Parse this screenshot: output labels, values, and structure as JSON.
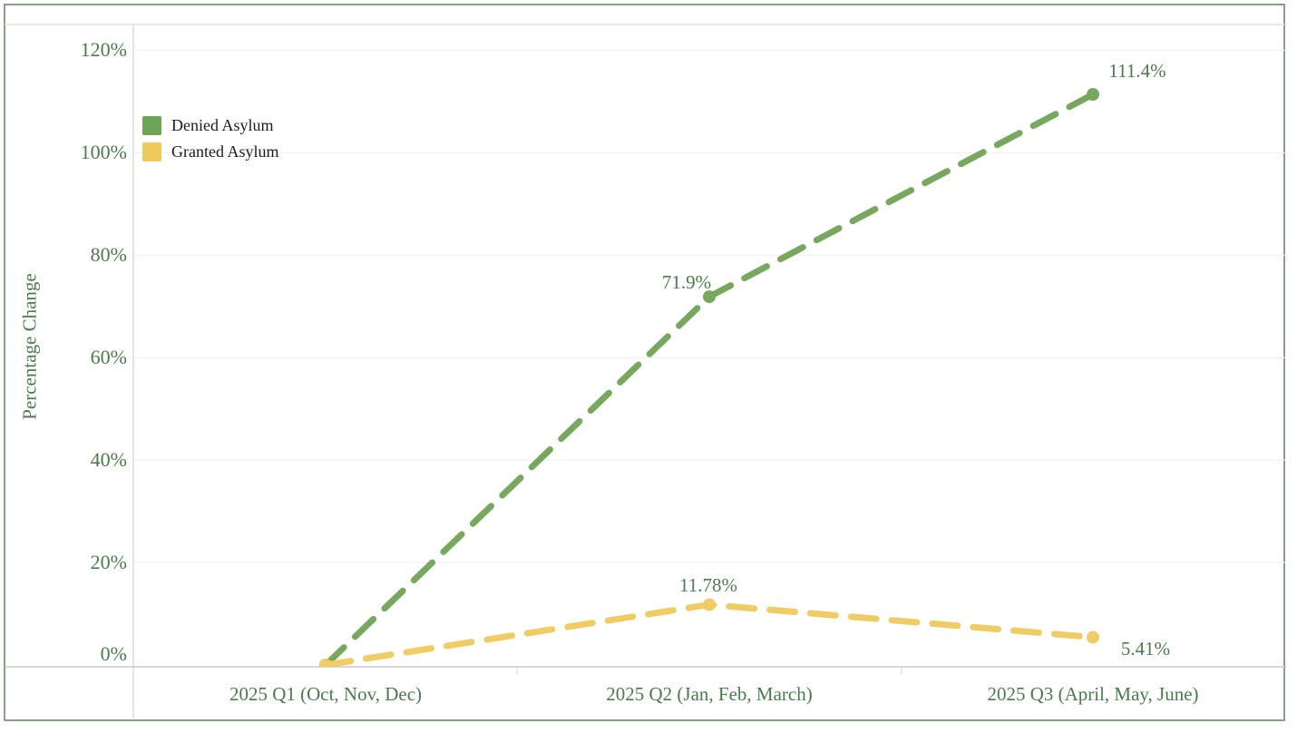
{
  "chart_data": {
    "type": "line",
    "title": "",
    "xlabel": "",
    "ylabel": "Percentage Change",
    "line_style": "dashed",
    "grid": true,
    "legend_position": "top-left-inside",
    "categories": [
      "2025 Q1 (Oct, Nov, Dec)",
      "2025 Q2 (Jan, Feb, March)",
      "2025 Q3 (April, May, June)"
    ],
    "y_tick_labels_top_to_bottom": [
      "120%",
      "100%",
      "80%",
      "60%",
      "40%",
      "20%",
      "0%"
    ],
    "y_tick_values_top_to_bottom": [
      120,
      100,
      80,
      60,
      40,
      20,
      0
    ],
    "ylim": [
      0,
      125
    ],
    "series": [
      {
        "name": "Denied Asylum",
        "color": "#78a85e",
        "legend_swatch_color": "#6ea455",
        "values": [
          0,
          71.9,
          111.4
        ],
        "point_labels": [
          "",
          "71.9%",
          "111.4%"
        ]
      },
      {
        "name": "Granted Asylum",
        "color": "#f0cc64",
        "legend_swatch_color": "#eeca5c",
        "values": [
          0,
          11.78,
          5.41
        ],
        "point_labels": [
          "",
          "11.78%",
          "5.41%"
        ]
      }
    ],
    "colors": {
      "axis_text": "#4a7c4b",
      "legend_text": "#1b1b1b",
      "frame_border": "#84a383",
      "header_divider": "#dcdcdc",
      "y_axis_line": "#d6d6d6",
      "x_axis_line": "#c8c8c8",
      "gridline": "#f1f1f1",
      "category_tick": "#dadada"
    }
  }
}
